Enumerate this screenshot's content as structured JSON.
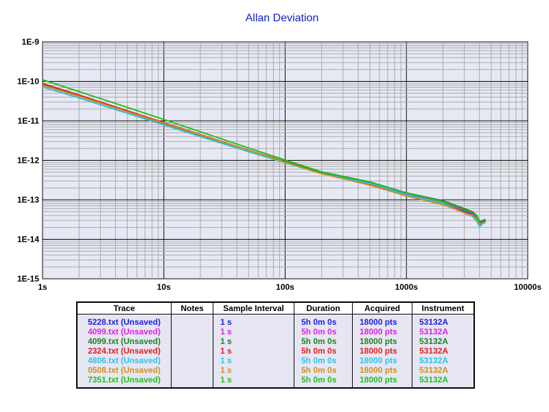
{
  "chart_data": {
    "type": "line",
    "title": "Allan Deviation",
    "xscale": "log",
    "yscale": "log",
    "xlim": [
      1,
      10000
    ],
    "ylim": [
      1e-15,
      1e-09
    ],
    "grid": true,
    "x_tick_labels": [
      "1s",
      "10s",
      "100s",
      "1000s",
      "10000s"
    ],
    "y_tick_labels": [
      "1E-9",
      "1E-10",
      "1E-11",
      "1E-12",
      "1E-13",
      "1E-14",
      "1E-15"
    ],
    "series": [
      {
        "name": "5228.txt (Unsaved)",
        "color": "#2020e0",
        "x": [
          1,
          2,
          5,
          10,
          20,
          50,
          100,
          200,
          500,
          1000,
          2000,
          3000,
          3500,
          3800,
          4000,
          4200,
          4500
        ],
        "y": [
          8e-11,
          4.2e-11,
          1.7e-11,
          8.5e-12,
          4.3e-12,
          1.75e-12,
          9e-13,
          4.7e-13,
          2.6e-13,
          1.35e-13,
          8.5e-14,
          5.2e-14,
          4.5e-14,
          3.7e-14,
          2.5e-14,
          2.8e-14,
          3e-14
        ]
      },
      {
        "name": "4099.txt (Unsaved)",
        "color": "#e020e0",
        "x": [
          1,
          2,
          5,
          10,
          20,
          50,
          100,
          200,
          500,
          1000,
          2000,
          3000,
          3500,
          3800,
          4000,
          4200,
          4500
        ],
        "y": [
          8.5e-11,
          4.4e-11,
          1.75e-11,
          8.8e-12,
          4.4e-12,
          1.78e-12,
          9.2e-13,
          4.8e-13,
          2.7e-13,
          1.4e-13,
          8.8e-14,
          5e-14,
          4.3e-14,
          3.3e-14,
          2.3e-14,
          2.6e-14,
          2.9e-14
        ]
      },
      {
        "name": "4099.txt (Unsaved)",
        "color": "#208020",
        "x": [
          1,
          2,
          5,
          10,
          20,
          50,
          100,
          200,
          500,
          1000,
          2000,
          3000,
          3500,
          3800,
          4000,
          4200,
          4500
        ],
        "y": [
          8.2e-11,
          4.3e-11,
          1.72e-11,
          8.6e-12,
          4.4e-12,
          1.8e-12,
          9.3e-13,
          4.9e-13,
          2.8e-13,
          1.5e-13,
          9.5e-14,
          6e-14,
          5e-14,
          4e-14,
          2.8e-14,
          3e-14,
          3.2e-14
        ]
      },
      {
        "name": "2324.txt (Unsaved)",
        "color": "#e02020",
        "x": [
          1,
          2,
          5,
          10,
          20,
          50,
          100,
          200,
          500,
          1000,
          2000,
          3000,
          3500,
          3800,
          4000,
          4200,
          4500
        ],
        "y": [
          8.8e-11,
          4.5e-11,
          1.8e-11,
          9e-12,
          4.5e-12,
          1.8e-12,
          9.1e-13,
          4.6e-13,
          2.5e-13,
          1.3e-13,
          7.8e-14,
          4.8e-14,
          4e-14,
          3.2e-14,
          2.2e-14,
          2.5e-14,
          2.8e-14
        ]
      },
      {
        "name": "4806.txt (Unsaved)",
        "color": "#30c0e8",
        "x": [
          1,
          2,
          5,
          10,
          20,
          50,
          100,
          200,
          500,
          1000,
          2000,
          3000,
          3500,
          3800,
          4000,
          4200,
          4500
        ],
        "y": [
          7.2e-11,
          3.8e-11,
          1.55e-11,
          7.9e-12,
          4e-12,
          1.65e-12,
          8.7e-13,
          4.6e-13,
          2.6e-13,
          1.35e-13,
          8.2e-14,
          4.6e-14,
          3.8e-14,
          2.9e-14,
          2.1e-14,
          2.4e-14,
          2.7e-14
        ]
      },
      {
        "name": "0508.txt (Unsaved)",
        "color": "#d09020",
        "x": [
          1,
          2,
          5,
          10,
          20,
          50,
          100,
          200,
          500,
          1000,
          2000,
          3000,
          3500,
          3800,
          4000,
          4200,
          4500
        ],
        "y": [
          8e-11,
          4.2e-11,
          1.7e-11,
          8.7e-12,
          4.4e-12,
          1.78e-12,
          9e-13,
          4.6e-13,
          2.35e-13,
          1.25e-13,
          7.5e-14,
          4.7e-14,
          4e-14,
          3.3e-14,
          2.4e-14,
          2.6e-14,
          2.8e-14
        ]
      },
      {
        "name": "7351.txt (Unsaved)",
        "color": "#20c020",
        "x": [
          1,
          2,
          5,
          10,
          20,
          50,
          100,
          200,
          500,
          1000,
          2000,
          3000,
          3500,
          3800,
          4000,
          4200,
          4500
        ],
        "y": [
          1.1e-10,
          5.5e-11,
          2.2e-11,
          1.08e-11,
          5.3e-12,
          2.05e-12,
          1.02e-12,
          5.1e-13,
          2.85e-13,
          1.5e-13,
          9e-14,
          5.6e-14,
          4.8e-14,
          3.8e-14,
          2.7e-14,
          3e-14,
          3.2e-14
        ]
      }
    ]
  },
  "legend_table": {
    "headers": [
      "Trace",
      "Notes",
      "Sample Interval",
      "Duration",
      "Acquired",
      "Instrument"
    ],
    "rows": [
      {
        "trace": "5228.txt (Unsaved)",
        "notes": "",
        "interval": "1 s",
        "duration": "5h 0m 0s",
        "acquired": "18000 pts",
        "instrument": "53132A",
        "color": "#2020e0"
      },
      {
        "trace": "4099.txt (Unsaved)",
        "notes": "",
        "interval": "1 s",
        "duration": "5h 0m 0s",
        "acquired": "18000 pts",
        "instrument": "53132A",
        "color": "#e020e0"
      },
      {
        "trace": "4099.txt (Unsaved)",
        "notes": "",
        "interval": "1 s",
        "duration": "5h 0m 0s",
        "acquired": "18000 pts",
        "instrument": "53132A",
        "color": "#208020"
      },
      {
        "trace": "2324.txt (Unsaved)",
        "notes": "",
        "interval": "1 s",
        "duration": "5h 0m 0s",
        "acquired": "18000 pts",
        "instrument": "53132A",
        "color": "#e02020"
      },
      {
        "trace": "4806.txt (Unsaved)",
        "notes": "",
        "interval": "1 s",
        "duration": "5h 0m 0s",
        "acquired": "18000 pts",
        "instrument": "53132A",
        "color": "#30c0e8"
      },
      {
        "trace": "0508.txt (Unsaved)",
        "notes": "",
        "interval": "1 s",
        "duration": "5h 0m 0s",
        "acquired": "18000 pts",
        "instrument": "53132A",
        "color": "#d09020"
      },
      {
        "trace": "7351.txt (Unsaved)",
        "notes": "",
        "interval": "1 s",
        "duration": "5h 0m 0s",
        "acquired": "18000 pts",
        "instrument": "53132A",
        "color": "#20c020"
      }
    ]
  }
}
